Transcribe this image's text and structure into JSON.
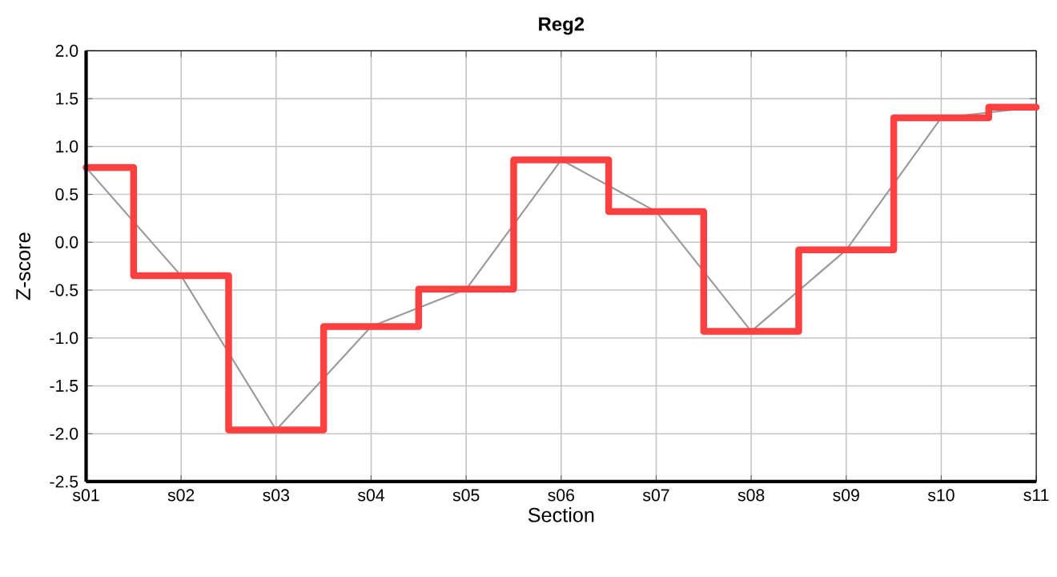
{
  "chart_data": {
    "type": "line",
    "title": "Reg2",
    "xlabel": "Section",
    "ylabel": "Z-score",
    "categories": [
      "s01",
      "s02",
      "s03",
      "s04",
      "s05",
      "s06",
      "s07",
      "s08",
      "s09",
      "s10",
      "s11"
    ],
    "series": [
      {
        "color": "#999999",
        "values": [
          0.78,
          -0.35,
          -1.96,
          -0.88,
          -0.49,
          0.86,
          0.32,
          -0.93,
          -0.08,
          1.3,
          1.41
        ]
      },
      {
        "type": "step",
        "color": "#ff4040",
        "values": [
          0.78,
          -0.35,
          -1.96,
          -0.88,
          -0.49,
          0.86,
          0.32,
          -0.93,
          -0.08,
          1.3,
          1.41
        ]
      }
    ],
    "ylim": [
      -2.5,
      2.0
    ],
    "yticks": [
      {
        "value": -2.5,
        "label": "-2.5"
      },
      {
        "value": -2.0,
        "label": "-2.0"
      },
      -1.5,
      {
        "value": -1.0,
        "label": "-1.0"
      },
      -0.5,
      {
        "value": 0,
        "label": "0.0"
      },
      0.5,
      {
        "value": 1.0,
        "label": "1.0"
      },
      1.5,
      {
        "value": 2.0,
        "label": "2.0"
      }
    ],
    "grid": true,
    "marker": "none",
    "line_style": "solid"
  }
}
